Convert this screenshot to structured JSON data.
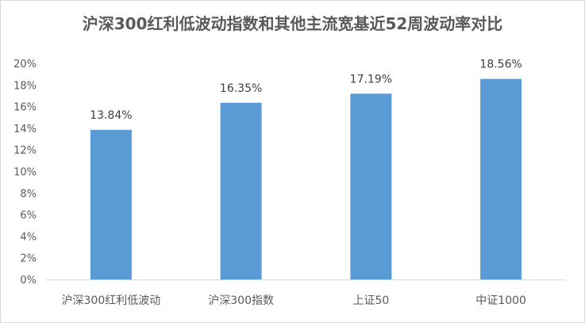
{
  "chart_data": {
    "type": "bar",
    "title": "沪深300红利低波动指数和其他主流宽基近52周波动率对比",
    "categories": [
      "沪深300红利低波动",
      "沪深300指数",
      "上证50",
      "中证1000"
    ],
    "values": [
      13.84,
      16.35,
      17.19,
      18.56
    ],
    "data_labels": [
      "13.84%",
      "16.35%",
      "17.19%",
      "18.56%"
    ],
    "ylim": [
      0,
      20
    ],
    "yticks": [
      0,
      2,
      4,
      6,
      8,
      10,
      12,
      14,
      16,
      18,
      20
    ],
    "ytick_labels": [
      "0%",
      "2%",
      "4%",
      "6%",
      "8%",
      "10%",
      "12%",
      "14%",
      "16%",
      "18%",
      "20%"
    ],
    "xlabel": "",
    "ylabel": "",
    "grid": false,
    "legend": "none",
    "bar_color": "#5b9bd5"
  }
}
